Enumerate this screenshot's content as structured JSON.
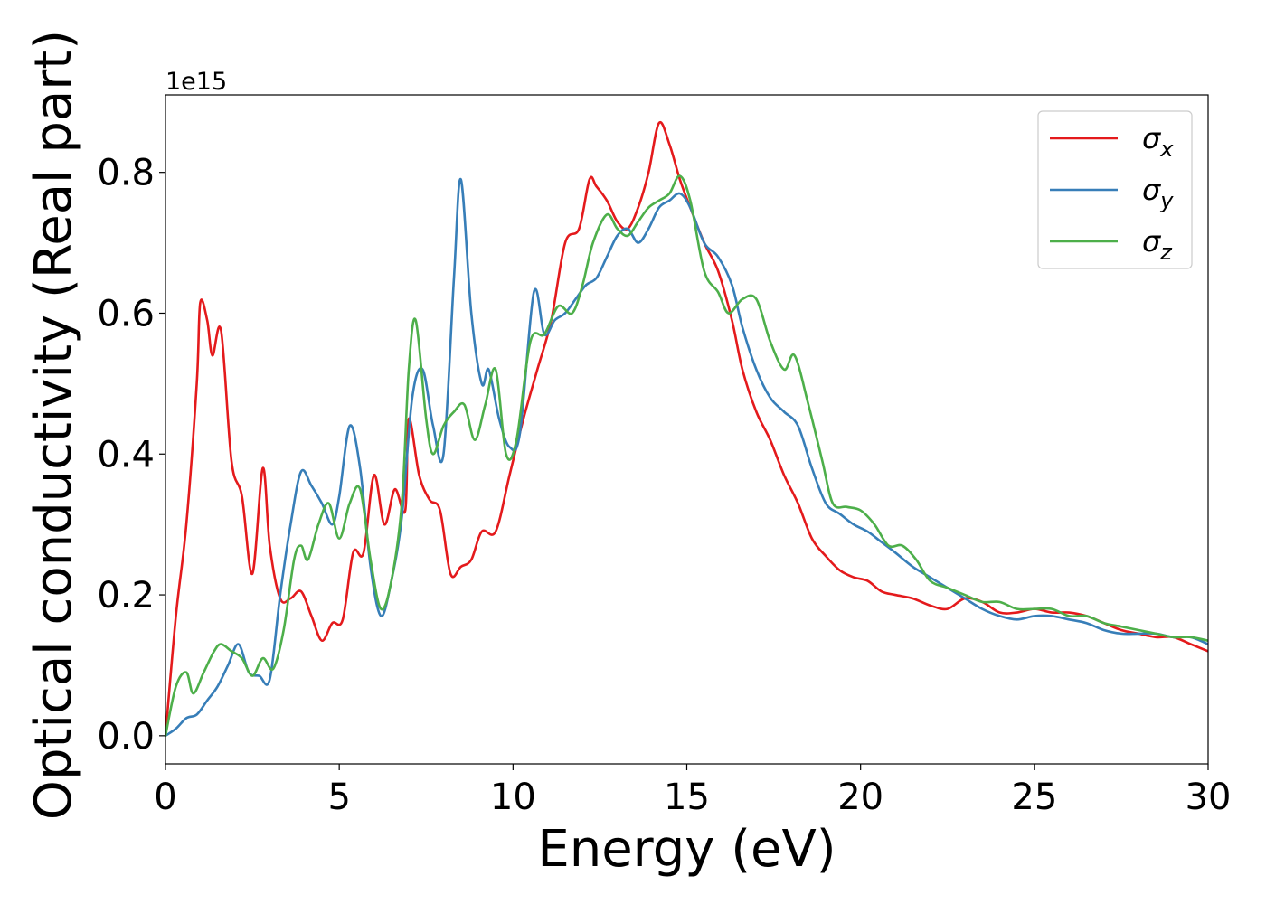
{
  "chart_data": {
    "type": "line",
    "xlabel": "Energy (eV)",
    "ylabel": "Optical conductivity (Real part)",
    "y_offset_label": "1e15",
    "xlim": [
      0,
      30
    ],
    "ylim": [
      -0.04,
      0.91
    ],
    "xticks": [
      0,
      5,
      10,
      15,
      20,
      25,
      30
    ],
    "xtick_labels": [
      "0",
      "5",
      "10",
      "15",
      "20",
      "25",
      "30"
    ],
    "yticks": [
      0.0,
      0.2,
      0.4,
      0.6,
      0.8
    ],
    "ytick_labels": [
      "0.0",
      "0.2",
      "0.4",
      "0.6",
      "0.8"
    ],
    "grid": false,
    "legend_position": "top-right",
    "series": [
      {
        "name": "σx",
        "legend_base": "σ",
        "legend_sub": "x",
        "color": "#e41a1c",
        "x": [
          0,
          0.3,
          0.6,
          0.9,
          1.0,
          1.2,
          1.35,
          1.6,
          1.9,
          2.2,
          2.5,
          2.8,
          3.0,
          3.3,
          3.6,
          3.9,
          4.2,
          4.5,
          4.8,
          5.1,
          5.4,
          5.7,
          6.0,
          6.3,
          6.6,
          6.9,
          7.0,
          7.3,
          7.6,
          7.9,
          8.2,
          8.5,
          8.8,
          9.1,
          9.5,
          9.9,
          10.3,
          10.7,
          11.1,
          11.5,
          11.9,
          12.2,
          12.4,
          12.7,
          13.0,
          13.3,
          13.6,
          13.9,
          14.2,
          14.5,
          14.8,
          15.1,
          15.5,
          15.9,
          16.3,
          16.6,
          17.0,
          17.4,
          17.8,
          18.2,
          18.6,
          19.0,
          19.4,
          19.8,
          20.2,
          20.6,
          21.0,
          21.5,
          22.0,
          22.5,
          23.0,
          23.5,
          24.0,
          24.5,
          25.0,
          25.5,
          26.0,
          26.5,
          27.0,
          27.5,
          28.0,
          28.5,
          29.0,
          29.5,
          30.0
        ],
        "values": [
          0.0,
          0.17,
          0.3,
          0.5,
          0.615,
          0.59,
          0.54,
          0.575,
          0.39,
          0.34,
          0.23,
          0.38,
          0.27,
          0.195,
          0.195,
          0.205,
          0.17,
          0.135,
          0.16,
          0.165,
          0.26,
          0.26,
          0.37,
          0.3,
          0.35,
          0.32,
          0.45,
          0.37,
          0.335,
          0.32,
          0.23,
          0.24,
          0.25,
          0.29,
          0.29,
          0.37,
          0.45,
          0.52,
          0.59,
          0.7,
          0.72,
          0.79,
          0.78,
          0.76,
          0.73,
          0.72,
          0.75,
          0.8,
          0.87,
          0.84,
          0.79,
          0.75,
          0.7,
          0.66,
          0.59,
          0.52,
          0.46,
          0.42,
          0.37,
          0.33,
          0.28,
          0.255,
          0.235,
          0.225,
          0.22,
          0.205,
          0.2,
          0.195,
          0.185,
          0.18,
          0.195,
          0.19,
          0.175,
          0.175,
          0.18,
          0.175,
          0.175,
          0.17,
          0.16,
          0.15,
          0.145,
          0.14,
          0.14,
          0.13,
          0.12
        ]
      },
      {
        "name": "σy",
        "legend_base": "σ",
        "legend_sub": "y",
        "color": "#377eb8",
        "x": [
          0,
          0.3,
          0.6,
          0.9,
          1.2,
          1.5,
          1.8,
          2.1,
          2.4,
          2.7,
          3.0,
          3.3,
          3.6,
          3.9,
          4.2,
          4.5,
          4.8,
          5.0,
          5.3,
          5.6,
          5.9,
          6.2,
          6.5,
          6.8,
          7.1,
          7.4,
          7.7,
          8.0,
          8.3,
          8.5,
          8.8,
          9.1,
          9.3,
          9.6,
          9.9,
          10.2,
          10.6,
          10.9,
          11.2,
          11.5,
          11.8,
          12.1,
          12.4,
          12.7,
          13.0,
          13.3,
          13.6,
          13.9,
          14.2,
          14.5,
          14.8,
          15.1,
          15.5,
          15.9,
          16.3,
          16.6,
          17.0,
          17.4,
          17.8,
          18.2,
          18.6,
          19.0,
          19.4,
          19.8,
          20.2,
          20.6,
          21.0,
          21.5,
          22.0,
          22.5,
          23.0,
          23.5,
          24.0,
          24.5,
          25.0,
          25.5,
          26.0,
          26.5,
          27.0,
          27.5,
          28.0,
          28.5,
          29.0,
          29.5,
          30.0
        ],
        "values": [
          0.0,
          0.01,
          0.025,
          0.03,
          0.05,
          0.07,
          0.1,
          0.13,
          0.09,
          0.085,
          0.08,
          0.2,
          0.3,
          0.375,
          0.355,
          0.33,
          0.3,
          0.34,
          0.44,
          0.38,
          0.24,
          0.17,
          0.22,
          0.31,
          0.48,
          0.52,
          0.44,
          0.4,
          0.65,
          0.79,
          0.6,
          0.5,
          0.52,
          0.45,
          0.41,
          0.43,
          0.63,
          0.57,
          0.59,
          0.6,
          0.62,
          0.64,
          0.65,
          0.68,
          0.71,
          0.72,
          0.7,
          0.72,
          0.75,
          0.76,
          0.77,
          0.75,
          0.7,
          0.68,
          0.64,
          0.58,
          0.52,
          0.48,
          0.46,
          0.44,
          0.38,
          0.33,
          0.315,
          0.3,
          0.29,
          0.275,
          0.26,
          0.24,
          0.225,
          0.21,
          0.195,
          0.18,
          0.17,
          0.165,
          0.17,
          0.17,
          0.165,
          0.16,
          0.15,
          0.145,
          0.145,
          0.145,
          0.14,
          0.14,
          0.13
        ]
      },
      {
        "name": "σz",
        "legend_base": "σ",
        "legend_sub": "z",
        "color": "#4daf4a",
        "x": [
          0,
          0.3,
          0.6,
          0.8,
          1.1,
          1.4,
          1.6,
          1.9,
          2.2,
          2.5,
          2.8,
          3.1,
          3.4,
          3.7,
          3.9,
          4.1,
          4.4,
          4.7,
          5.0,
          5.3,
          5.6,
          5.9,
          6.2,
          6.5,
          6.8,
          7.0,
          7.2,
          7.5,
          7.7,
          8.0,
          8.3,
          8.6,
          8.9,
          9.2,
          9.5,
          9.8,
          10.1,
          10.5,
          10.9,
          11.3,
          11.7,
          12.0,
          12.3,
          12.7,
          13.0,
          13.3,
          13.6,
          13.9,
          14.2,
          14.5,
          14.8,
          15.1,
          15.5,
          15.9,
          16.2,
          16.6,
          17.0,
          17.4,
          17.8,
          18.1,
          18.5,
          18.9,
          19.2,
          19.6,
          20.0,
          20.4,
          20.8,
          21.2,
          21.6,
          22.0,
          22.5,
          23.0,
          23.5,
          24.0,
          24.5,
          25.0,
          25.5,
          26.0,
          26.5,
          27.0,
          27.5,
          28.0,
          28.5,
          29.0,
          29.5,
          30.0
        ],
        "values": [
          0.0,
          0.07,
          0.09,
          0.06,
          0.09,
          0.12,
          0.13,
          0.12,
          0.11,
          0.085,
          0.11,
          0.095,
          0.15,
          0.25,
          0.27,
          0.25,
          0.3,
          0.33,
          0.28,
          0.33,
          0.35,
          0.25,
          0.18,
          0.22,
          0.33,
          0.52,
          0.59,
          0.45,
          0.4,
          0.44,
          0.46,
          0.47,
          0.42,
          0.47,
          0.52,
          0.4,
          0.42,
          0.56,
          0.57,
          0.61,
          0.6,
          0.64,
          0.7,
          0.74,
          0.72,
          0.71,
          0.73,
          0.75,
          0.76,
          0.77,
          0.795,
          0.76,
          0.66,
          0.63,
          0.6,
          0.62,
          0.62,
          0.56,
          0.52,
          0.54,
          0.47,
          0.39,
          0.33,
          0.325,
          0.32,
          0.3,
          0.27,
          0.27,
          0.25,
          0.22,
          0.21,
          0.2,
          0.19,
          0.19,
          0.18,
          0.18,
          0.18,
          0.17,
          0.17,
          0.16,
          0.155,
          0.15,
          0.145,
          0.14,
          0.14,
          0.135
        ]
      }
    ]
  }
}
